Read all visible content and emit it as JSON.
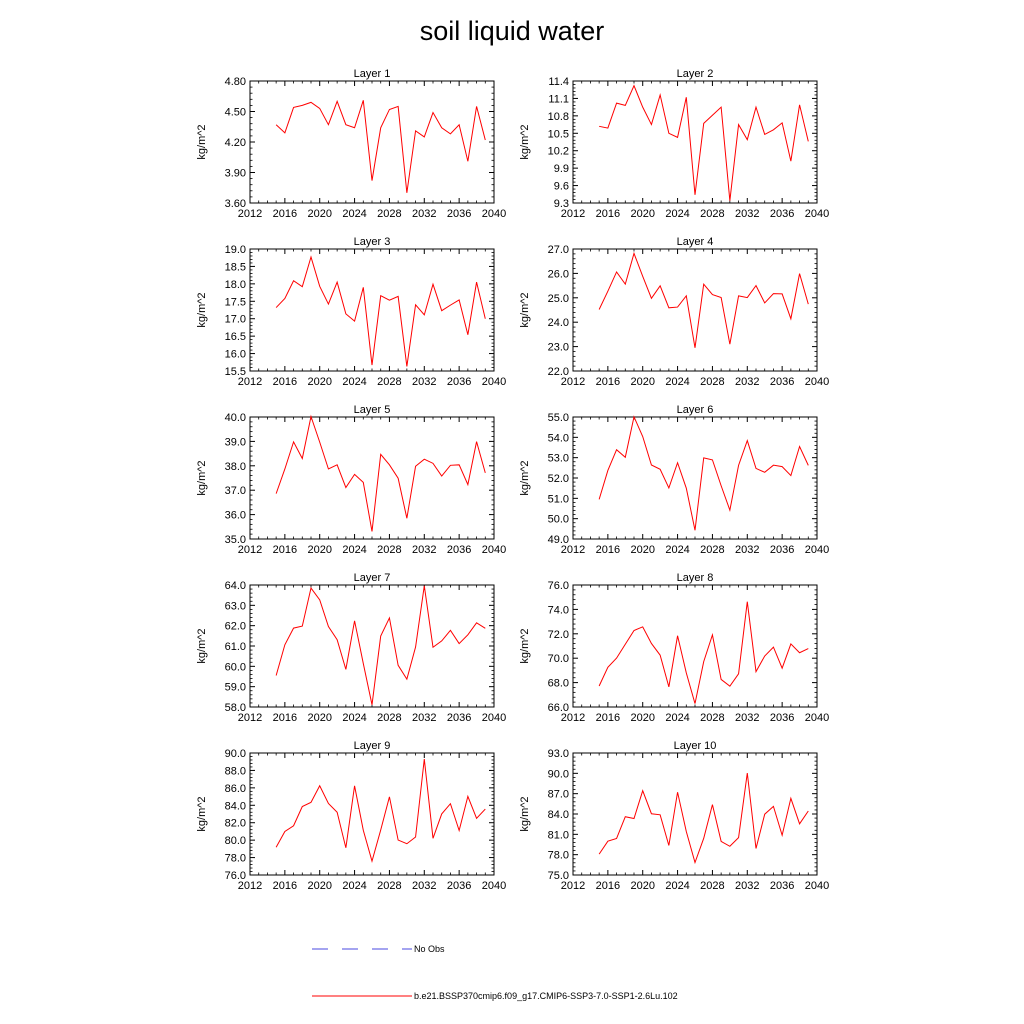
{
  "title": "soil liquid water",
  "colors": {
    "model": "#ff0000",
    "obs": "#4a4ae0",
    "axis": "#000000"
  },
  "legend": {
    "obs_label": "No Obs",
    "model_label": "b.e21.BSSP370cmip6.f09_g17.CMIP6-SSP3-7.0-SSP1-2.6Lu.102"
  },
  "chart_data": [
    {
      "type": "line",
      "title": "Layer 1",
      "xlabel": "",
      "ylabel": "kg/m^2",
      "xlim": [
        2012,
        2040
      ],
      "ylim": [
        3.6,
        4.8
      ],
      "xticks": [
        2012,
        2016,
        2020,
        2024,
        2028,
        2032,
        2036,
        2040
      ],
      "yticks": [
        "3.60",
        "3.90",
        "4.20",
        "4.50",
        "4.80"
      ],
      "x": [
        2015,
        2016,
        2017,
        2018,
        2019,
        2020,
        2021,
        2022,
        2023,
        2024,
        2025,
        2026,
        2027,
        2028,
        2029,
        2030,
        2031,
        2032,
        2033,
        2034,
        2035,
        2036,
        2037,
        2038,
        2039
      ],
      "series": [
        {
          "name": "b.e21.BSSP370cmip6.f09_g17.CMIP6-SSP3-7.0-SSP1-2.6Lu.102",
          "values": [
            4.37,
            4.29,
            4.54,
            4.56,
            4.59,
            4.53,
            4.37,
            4.6,
            4.37,
            4.34,
            4.61,
            3.82,
            4.34,
            4.52,
            4.55,
            3.7,
            4.31,
            4.25,
            4.49,
            4.34,
            4.28,
            4.37,
            4.01,
            4.55,
            4.22
          ]
        }
      ]
    },
    {
      "type": "line",
      "title": "Layer 2",
      "xlabel": "",
      "ylabel": "kg/m^2",
      "xlim": [
        2012,
        2040
      ],
      "ylim": [
        9.3,
        11.4
      ],
      "xticks": [
        2012,
        2016,
        2020,
        2024,
        2028,
        2032,
        2036,
        2040
      ],
      "yticks": [
        "9.3",
        "9.6",
        "9.9",
        "10.2",
        "10.5",
        "10.8",
        "11.1",
        "11.4"
      ],
      "x": [
        2015,
        2016,
        2017,
        2018,
        2019,
        2020,
        2021,
        2022,
        2023,
        2024,
        2025,
        2026,
        2027,
        2028,
        2029,
        2030,
        2031,
        2032,
        2033,
        2034,
        2035,
        2036,
        2037,
        2038,
        2039
      ],
      "series": [
        {
          "name": "b.e21.BSSP370cmip6.f09_g17.CMIP6-SSP3-7.0-SSP1-2.6Lu.102",
          "values": [
            10.62,
            10.59,
            11.02,
            10.98,
            11.32,
            10.95,
            10.65,
            11.16,
            10.5,
            10.43,
            11.12,
            9.44,
            10.67,
            10.81,
            10.95,
            9.34,
            10.65,
            10.39,
            10.95,
            10.48,
            10.56,
            10.68,
            10.02,
            10.99,
            10.36
          ]
        }
      ]
    },
    {
      "type": "line",
      "title": "Layer 3",
      "xlabel": "",
      "ylabel": "kg/m^2",
      "xlim": [
        2012,
        2040
      ],
      "ylim": [
        15.5,
        19.0
      ],
      "xticks": [
        2012,
        2016,
        2020,
        2024,
        2028,
        2032,
        2036,
        2040
      ],
      "yticks": [
        "15.5",
        "16.0",
        "16.5",
        "17.0",
        "17.5",
        "18.0",
        "18.5",
        "19.0"
      ],
      "x": [
        2015,
        2016,
        2017,
        2018,
        2019,
        2020,
        2021,
        2022,
        2023,
        2024,
        2025,
        2026,
        2027,
        2028,
        2029,
        2030,
        2031,
        2032,
        2033,
        2034,
        2035,
        2036,
        2037,
        2038,
        2039
      ],
      "series": [
        {
          "name": "b.e21.BSSP370cmip6.f09_g17.CMIP6-SSP3-7.0-SSP1-2.6Lu.102",
          "values": [
            17.32,
            17.58,
            18.09,
            17.92,
            18.77,
            17.93,
            17.42,
            18.05,
            17.14,
            16.93,
            17.9,
            15.67,
            17.66,
            17.53,
            17.64,
            15.63,
            17.4,
            17.11,
            17.99,
            17.23,
            17.39,
            17.54,
            16.54,
            18.05,
            17.0
          ]
        }
      ]
    },
    {
      "type": "line",
      "title": "Layer 4",
      "xlabel": "",
      "ylabel": "kg/m^2",
      "xlim": [
        2012,
        2040
      ],
      "ylim": [
        22.0,
        27.0
      ],
      "xticks": [
        2012,
        2016,
        2020,
        2024,
        2028,
        2032,
        2036,
        2040
      ],
      "yticks": [
        "22.0",
        "23.0",
        "24.0",
        "25.0",
        "26.0",
        "27.0"
      ],
      "x": [
        2015,
        2016,
        2017,
        2018,
        2019,
        2020,
        2021,
        2022,
        2023,
        2024,
        2025,
        2026,
        2027,
        2028,
        2029,
        2030,
        2031,
        2032,
        2033,
        2034,
        2035,
        2036,
        2037,
        2038,
        2039
      ],
      "series": [
        {
          "name": "b.e21.BSSP370cmip6.f09_g17.CMIP6-SSP3-7.0-SSP1-2.6Lu.102",
          "values": [
            24.52,
            25.27,
            26.06,
            25.56,
            26.82,
            25.88,
            24.98,
            25.49,
            24.59,
            24.62,
            25.08,
            22.95,
            25.56,
            25.13,
            25.01,
            23.1,
            25.08,
            25.01,
            25.5,
            24.79,
            25.17,
            25.16,
            24.14,
            25.99,
            24.74
          ]
        }
      ]
    },
    {
      "type": "line",
      "title": "Layer 5",
      "xlabel": "",
      "ylabel": "kg/m^2",
      "xlim": [
        2012,
        2040
      ],
      "ylim": [
        35.0,
        40.0
      ],
      "xticks": [
        2012,
        2016,
        2020,
        2024,
        2028,
        2032,
        2036,
        2040
      ],
      "yticks": [
        "35.0",
        "36.0",
        "37.0",
        "38.0",
        "39.0",
        "40.0"
      ],
      "x": [
        2015,
        2016,
        2017,
        2018,
        2019,
        2020,
        2021,
        2022,
        2023,
        2024,
        2025,
        2026,
        2027,
        2028,
        2029,
        2030,
        2031,
        2032,
        2033,
        2034,
        2035,
        2036,
        2037,
        2038,
        2039
      ],
      "series": [
        {
          "name": "b.e21.BSSP370cmip6.f09_g17.CMIP6-SSP3-7.0-SSP1-2.6Lu.102",
          "values": [
            36.86,
            37.87,
            38.98,
            38.3,
            40.02,
            38.97,
            37.87,
            38.04,
            37.11,
            37.65,
            37.32,
            35.31,
            38.47,
            38.04,
            37.49,
            35.85,
            37.98,
            38.27,
            38.1,
            37.58,
            38.02,
            38.04,
            37.23,
            38.99,
            37.71
          ]
        }
      ]
    },
    {
      "type": "line",
      "title": "Layer 6",
      "xlabel": "",
      "ylabel": "kg/m^2",
      "xlim": [
        2012,
        2040
      ],
      "ylim": [
        49.0,
        55.0
      ],
      "xticks": [
        2012,
        2016,
        2020,
        2024,
        2028,
        2032,
        2036,
        2040
      ],
      "yticks": [
        "49.0",
        "50.0",
        "51.0",
        "52.0",
        "53.0",
        "54.0",
        "55.0"
      ],
      "x": [
        2015,
        2016,
        2017,
        2018,
        2019,
        2020,
        2021,
        2022,
        2023,
        2024,
        2025,
        2026,
        2027,
        2028,
        2029,
        2030,
        2031,
        2032,
        2033,
        2034,
        2035,
        2036,
        2037,
        2038,
        2039
      ],
      "series": [
        {
          "name": "b.e21.BSSP370cmip6.f09_g17.CMIP6-SSP3-7.0-SSP1-2.6Lu.102",
          "values": [
            50.95,
            52.37,
            53.39,
            53.02,
            55.01,
            54.04,
            52.64,
            52.43,
            51.51,
            52.75,
            51.5,
            49.43,
            52.99,
            52.89,
            51.62,
            50.42,
            52.62,
            53.84,
            52.47,
            52.28,
            52.63,
            52.56,
            52.12,
            53.55,
            52.62
          ]
        }
      ]
    },
    {
      "type": "line",
      "title": "Layer 7",
      "xlabel": "",
      "ylabel": "kg/m^2",
      "xlim": [
        2012,
        2040
      ],
      "ylim": [
        58.0,
        64.0
      ],
      "xticks": [
        2012,
        2016,
        2020,
        2024,
        2028,
        2032,
        2036,
        2040
      ],
      "yticks": [
        "58.0",
        "59.0",
        "60.0",
        "61.0",
        "62.0",
        "63.0",
        "64.0"
      ],
      "x": [
        2015,
        2016,
        2017,
        2018,
        2019,
        2020,
        2021,
        2022,
        2023,
        2024,
        2025,
        2026,
        2027,
        2028,
        2029,
        2030,
        2031,
        2032,
        2033,
        2034,
        2035,
        2036,
        2037,
        2038,
        2039
      ],
      "series": [
        {
          "name": "b.e21.BSSP370cmip6.f09_g17.CMIP6-SSP3-7.0-SSP1-2.6Lu.102",
          "values": [
            59.55,
            61.06,
            61.88,
            61.98,
            63.85,
            63.27,
            61.96,
            61.31,
            59.85,
            62.24,
            60.14,
            58.11,
            61.49,
            62.38,
            60.05,
            59.37,
            60.95,
            63.96,
            60.94,
            61.25,
            61.77,
            61.12,
            61.55,
            62.14,
            61.87
          ]
        }
      ]
    },
    {
      "type": "line",
      "title": "Layer 8",
      "xlabel": "",
      "ylabel": "kg/m^2",
      "xlim": [
        2012,
        2040
      ],
      "ylim": [
        66.0,
        76.0
      ],
      "xticks": [
        2012,
        2016,
        2020,
        2024,
        2028,
        2032,
        2036,
        2040
      ],
      "yticks": [
        "66.0",
        "68.0",
        "70.0",
        "72.0",
        "74.0",
        "76.0"
      ],
      "x": [
        2015,
        2016,
        2017,
        2018,
        2019,
        2020,
        2021,
        2022,
        2023,
        2024,
        2025,
        2026,
        2027,
        2028,
        2029,
        2030,
        2031,
        2032,
        2033,
        2034,
        2035,
        2036,
        2037,
        2038,
        2039
      ],
      "series": [
        {
          "name": "b.e21.BSSP370cmip6.f09_g17.CMIP6-SSP3-7.0-SSP1-2.6Lu.102",
          "values": [
            67.72,
            69.26,
            70.01,
            71.14,
            72.27,
            72.57,
            71.21,
            70.25,
            67.65,
            71.84,
            68.8,
            66.28,
            69.72,
            71.91,
            68.26,
            67.71,
            68.72,
            74.63,
            68.9,
            70.18,
            70.91,
            69.18,
            71.17,
            70.45,
            70.79
          ]
        }
      ]
    },
    {
      "type": "line",
      "title": "Layer 9",
      "xlabel": "",
      "ylabel": "kg/m^2",
      "xlim": [
        2012,
        2040
      ],
      "ylim": [
        76.0,
        90.0
      ],
      "xticks": [
        2012,
        2016,
        2020,
        2024,
        2028,
        2032,
        2036,
        2040
      ],
      "yticks": [
        "76.0",
        "78.0",
        "80.0",
        "82.0",
        "84.0",
        "86.0",
        "88.0",
        "90.0"
      ],
      "x": [
        2015,
        2016,
        2017,
        2018,
        2019,
        2020,
        2021,
        2022,
        2023,
        2024,
        2025,
        2026,
        2027,
        2028,
        2029,
        2030,
        2031,
        2032,
        2033,
        2034,
        2035,
        2036,
        2037,
        2038,
        2039
      ],
      "series": [
        {
          "name": "b.e21.BSSP370cmip6.f09_g17.CMIP6-SSP3-7.0-SSP1-2.6Lu.102",
          "values": [
            79.18,
            80.99,
            81.65,
            83.86,
            84.34,
            86.24,
            84.21,
            83.2,
            79.12,
            86.23,
            81.14,
            77.59,
            81.17,
            84.97,
            80.01,
            79.59,
            80.36,
            89.3,
            80.21,
            83.01,
            84.18,
            81.11,
            85.02,
            82.5,
            83.57
          ]
        }
      ]
    },
    {
      "type": "line",
      "title": "Layer 10",
      "xlabel": "",
      "ylabel": "kg/m^2",
      "xlim": [
        2012,
        2040
      ],
      "ylim": [
        75.0,
        93.0
      ],
      "xticks": [
        2012,
        2016,
        2020,
        2024,
        2028,
        2032,
        2036,
        2040
      ],
      "yticks": [
        "75.0",
        "78.0",
        "81.0",
        "84.0",
        "87.0",
        "90.0",
        "93.0"
      ],
      "x": [
        2015,
        2016,
        2017,
        2018,
        2019,
        2020,
        2021,
        2022,
        2023,
        2024,
        2025,
        2026,
        2027,
        2028,
        2029,
        2030,
        2031,
        2032,
        2033,
        2034,
        2035,
        2036,
        2037,
        2038,
        2039
      ],
      "series": [
        {
          "name": "b.e21.BSSP370cmip6.f09_g17.CMIP6-SSP3-7.0-SSP1-2.6Lu.102",
          "values": [
            78.08,
            79.99,
            80.39,
            83.6,
            83.33,
            87.44,
            84.04,
            83.88,
            79.36,
            87.22,
            81.42,
            76.84,
            80.41,
            85.38,
            79.96,
            79.24,
            80.52,
            90.04,
            78.91,
            83.97,
            85.12,
            80.87,
            86.32,
            82.55,
            84.44
          ]
        }
      ]
    }
  ]
}
